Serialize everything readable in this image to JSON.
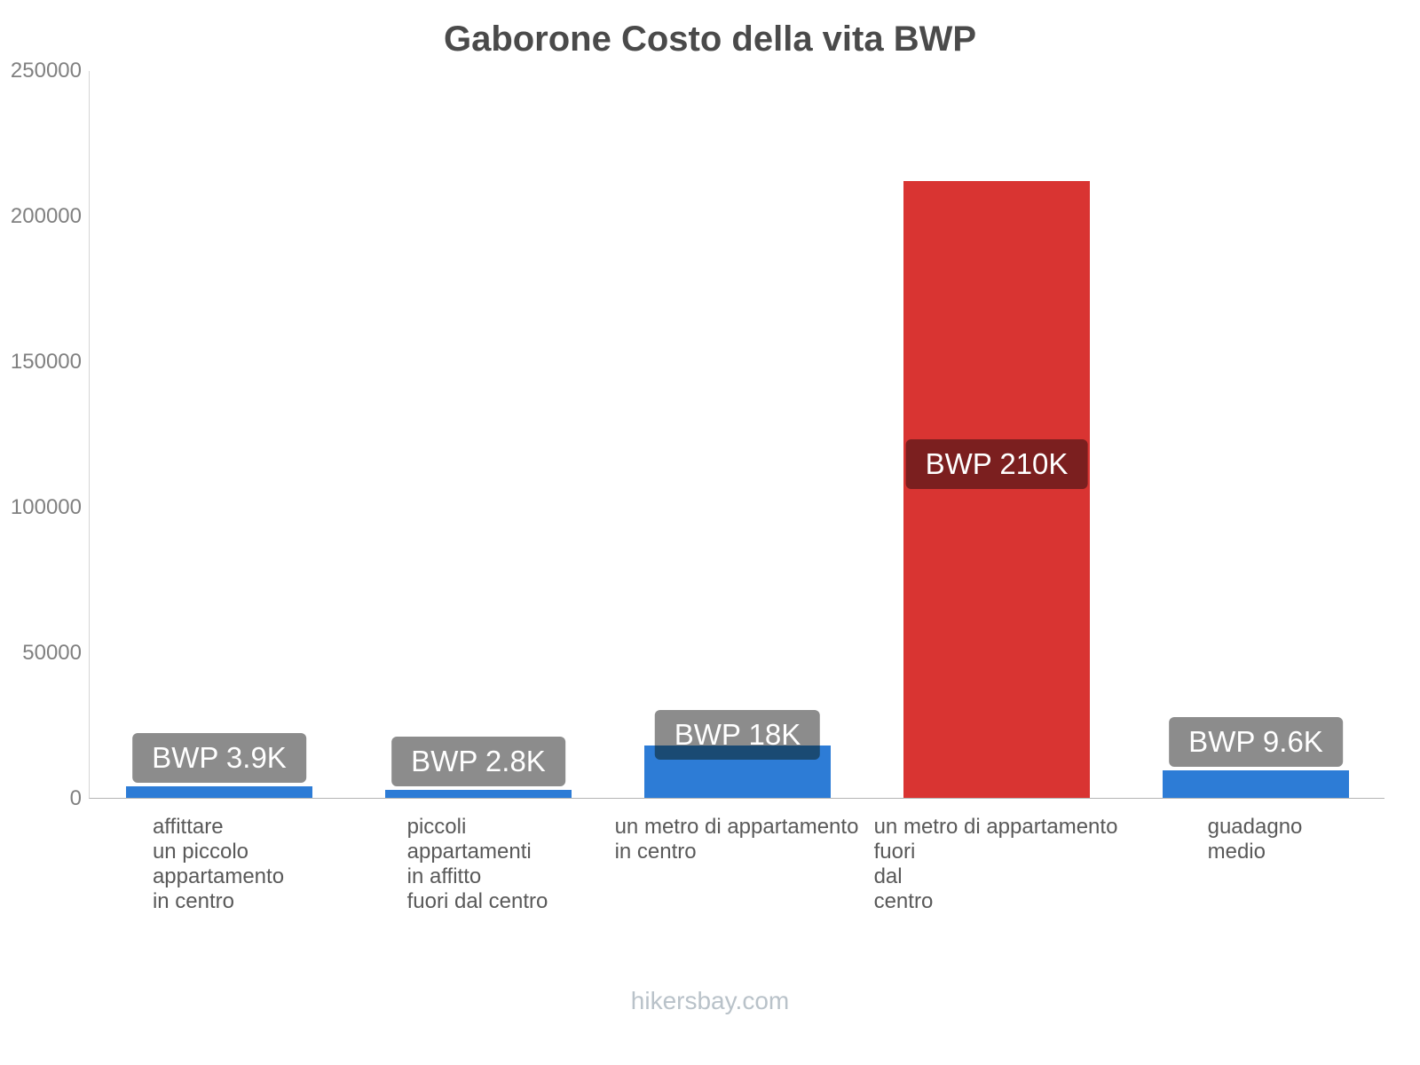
{
  "chart_data": {
    "type": "bar",
    "title": "Gaborone Costo della vita BWP",
    "ylabel": "",
    "xlabel": "",
    "ylim": [
      0,
      250000
    ],
    "yticks": [
      "0",
      "50000",
      "100000",
      "150000",
      "200000",
      "250000"
    ],
    "grid": false,
    "legend": "none",
    "currency": "BWP",
    "footer": "hikersbay.com",
    "bars": [
      {
        "category_lines": [
          "affittare",
          "un piccolo",
          "appartamento",
          "in centro"
        ],
        "value": 3900,
        "label": "BWP 3.9K",
        "color": "#2d7cd6",
        "label_bg": "#8c8c8c",
        "label_pos": "above"
      },
      {
        "category_lines": [
          "piccoli",
          "appartamenti",
          "in affitto",
          "fuori dal centro"
        ],
        "value": 2800,
        "label": "BWP 2.8K",
        "color": "#2d7cd6",
        "label_bg": "#8c8c8c",
        "label_pos": "above"
      },
      {
        "category_lines": [
          "un metro di appartamento",
          "in centro"
        ],
        "value": 18000,
        "label": "BWP 18K",
        "color": "#2d7cd6",
        "label_bg": "#8c8c8c",
        "label_bg_overlap": "#1a4a73",
        "label_pos": "overlap"
      },
      {
        "category_lines": [
          "un metro di appartamento",
          "fuori",
          "dal",
          "centro"
        ],
        "value": 212000,
        "label": "BWP 210K",
        "color": "#d93432",
        "label_bg": "#7b1f1f",
        "label_pos": "inside"
      },
      {
        "category_lines": [
          "guadagno",
          "medio"
        ],
        "value": 9600,
        "label": "BWP 9.6K",
        "color": "#2d7cd6",
        "label_bg": "#8c8c8c",
        "label_pos": "above"
      }
    ]
  }
}
